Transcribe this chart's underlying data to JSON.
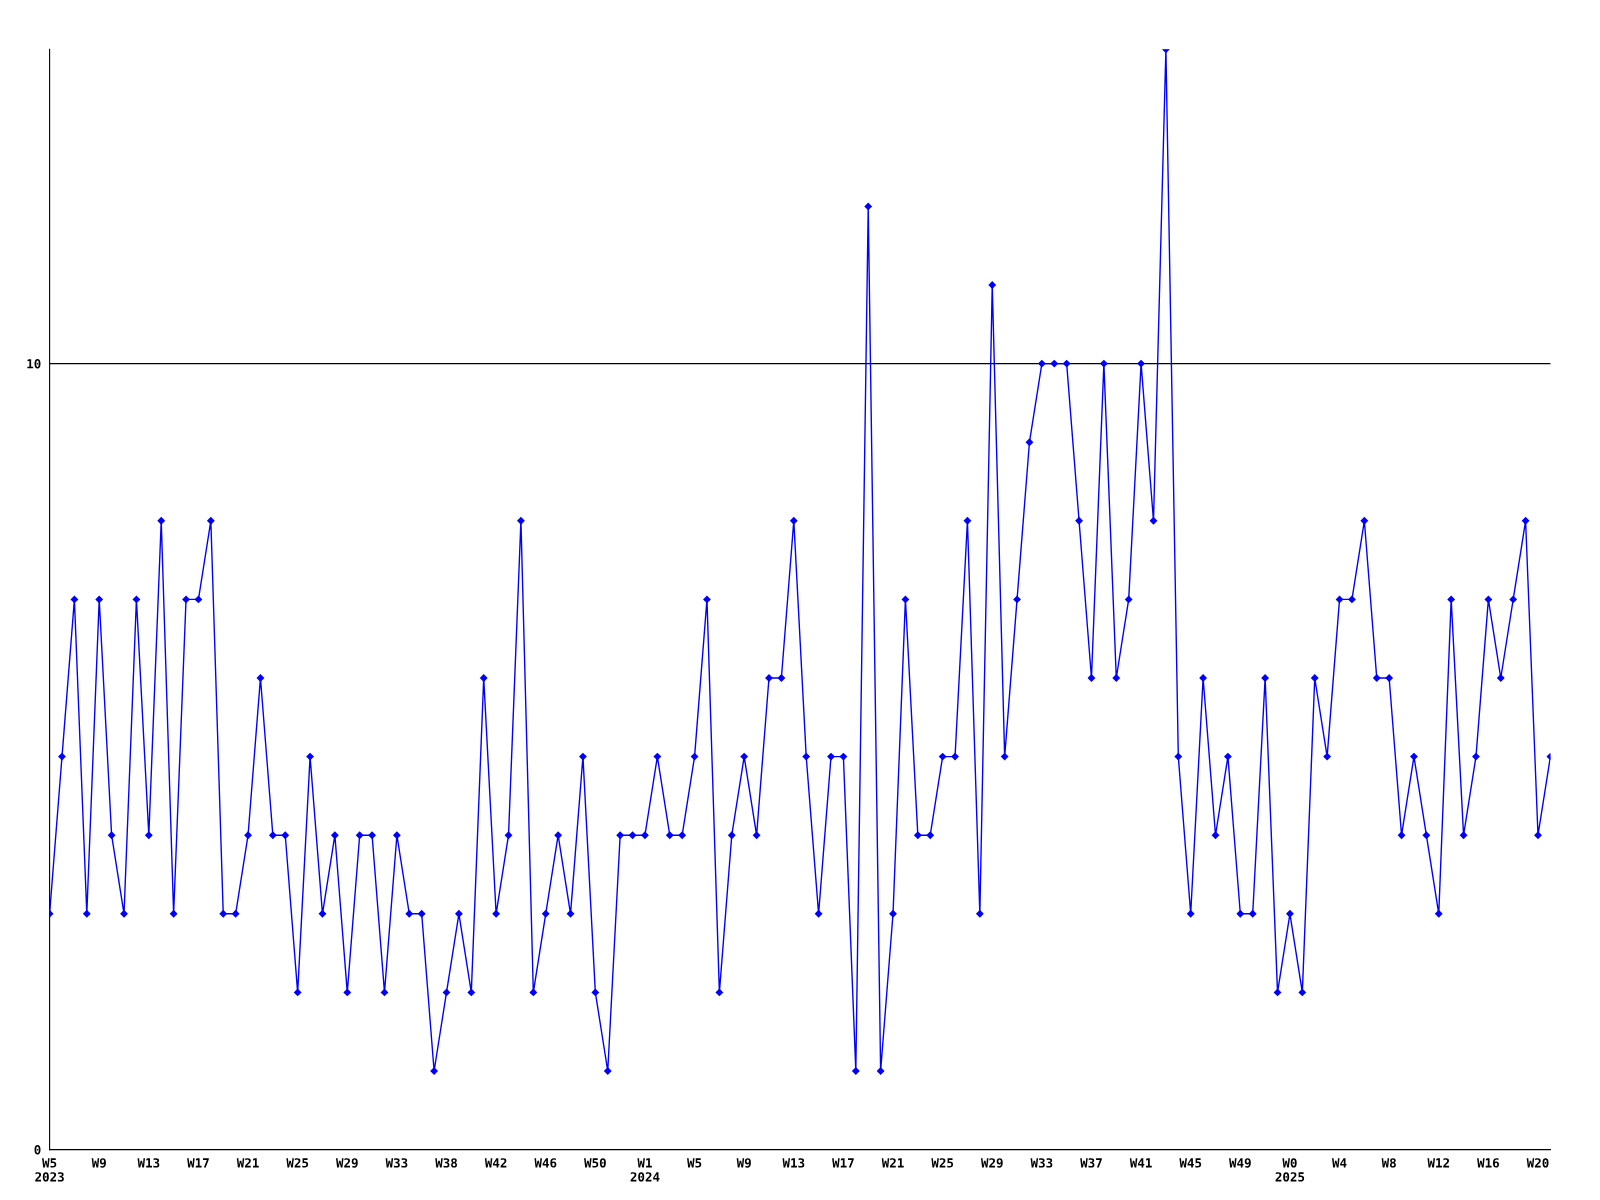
{
  "chart_data": {
    "type": "line",
    "categories": [
      "W5\n2023",
      null,
      null,
      null,
      "W9",
      null,
      null,
      null,
      "W13",
      null,
      null,
      null,
      "W17",
      null,
      null,
      null,
      "W21",
      null,
      null,
      null,
      "W25",
      null,
      null,
      null,
      "W29",
      null,
      null,
      null,
      "W33",
      null,
      null,
      null,
      "W38",
      null,
      null,
      null,
      "W42",
      null,
      null,
      null,
      "W46",
      null,
      null,
      null,
      "W50",
      null,
      null,
      null,
      "W1\n2024",
      null,
      null,
      null,
      "W5",
      null,
      null,
      null,
      "W9",
      null,
      null,
      null,
      "W13",
      null,
      null,
      null,
      "W17",
      null,
      null,
      null,
      "W21",
      null,
      null,
      null,
      "W25",
      null,
      null,
      null,
      "W29",
      null,
      null,
      null,
      "W33",
      null,
      null,
      null,
      "W37",
      null,
      null,
      null,
      "W41",
      null,
      null,
      null,
      "W45",
      null,
      null,
      null,
      "W49",
      null,
      null,
      null,
      "W0\n2025",
      null,
      null,
      null,
      "W4",
      null,
      null,
      null,
      "W8",
      null,
      null,
      null,
      "W12",
      null,
      null,
      null,
      "W16",
      null,
      null,
      null,
      "W20",
      null
    ],
    "series": [
      {
        "color": "#0000ff",
        "values": [
          3,
          5,
          7,
          3,
          7,
          4,
          3,
          7,
          4,
          8,
          3,
          7,
          7,
          8,
          3,
          3,
          4,
          6,
          4,
          4,
          2,
          5,
          3,
          4,
          2,
          4,
          4,
          2,
          4,
          3,
          3,
          1,
          2,
          3,
          2,
          6,
          3,
          4,
          8,
          2,
          3,
          4,
          3,
          5,
          2,
          1,
          4,
          4,
          4,
          5,
          4,
          4,
          5,
          7,
          2,
          4,
          5,
          4,
          6,
          6,
          8,
          5,
          3,
          5,
          5,
          1,
          12,
          1,
          3,
          7,
          4,
          4,
          5,
          5,
          8,
          3,
          11,
          5,
          7,
          9,
          10,
          10,
          10,
          8,
          6,
          10,
          6,
          7,
          10,
          8,
          14,
          5,
          3,
          6,
          4,
          5,
          3,
          3,
          6,
          2,
          3,
          2,
          6,
          5,
          7,
          7,
          8,
          6,
          6,
          4,
          5,
          4,
          3,
          7,
          4,
          5,
          7,
          6,
          7,
          8,
          4,
          5
        ]
      }
    ],
    "ylim": [
      0,
      14
    ],
    "yticks": [
      0,
      10
    ],
    "grid": "y",
    "marker": "diamond",
    "line_style": "solid"
  }
}
